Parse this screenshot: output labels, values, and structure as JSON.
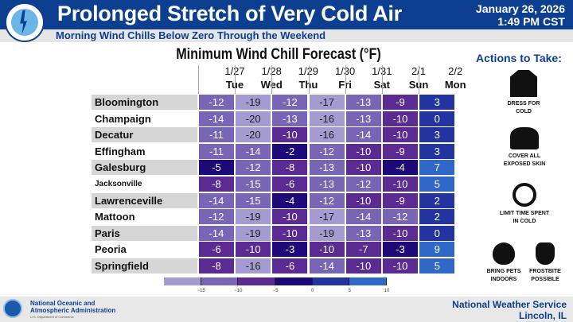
{
  "header": {
    "title": "Prolonged Stretch of Very Cold Air",
    "subtitle": "Morning Wind Chills Below Zero Through the Weekend",
    "date": "January 26, 2026",
    "time": "1:49 PM CST",
    "logo_text": "NATIONAL WEATHER SERVICE"
  },
  "table": {
    "title": "Minimum Wind Chill Forecast (°F)",
    "columns": [
      {
        "date": "1/27",
        "day": "Tue"
      },
      {
        "date": "1/28",
        "day": "Wed"
      },
      {
        "date": "1/29",
        "day": "Thu"
      },
      {
        "date": "1/30",
        "day": "Fri"
      },
      {
        "date": "1/31",
        "day": "Sat"
      },
      {
        "date": "2/1",
        "day": "Sun"
      },
      {
        "date": "2/2",
        "day": "Mon"
      }
    ],
    "rows": [
      {
        "city": "Bloomington",
        "values": [
          -12,
          -19,
          -12,
          -17,
          -13,
          -9,
          3
        ]
      },
      {
        "city": "Champaign",
        "values": [
          -14,
          -20,
          -13,
          -16,
          -13,
          -10,
          0
        ]
      },
      {
        "city": "Decatur",
        "values": [
          -11,
          -20,
          -10,
          -16,
          -14,
          -10,
          3
        ]
      },
      {
        "city": "Effingham",
        "values": [
          -11,
          -14,
          -2,
          -12,
          -10,
          -9,
          3
        ]
      },
      {
        "city": "Galesburg",
        "values": [
          -5,
          -12,
          -8,
          -13,
          -10,
          -4,
          7
        ]
      },
      {
        "city": "Jacksonville",
        "values": [
          -8,
          -15,
          -6,
          -13,
          -12,
          -10,
          5
        ]
      },
      {
        "city": "Lawrenceville",
        "values": [
          -14,
          -15,
          -4,
          -12,
          -10,
          -9,
          2
        ]
      },
      {
        "city": "Mattoon",
        "values": [
          -12,
          -19,
          -10,
          -17,
          -14,
          -12,
          2
        ]
      },
      {
        "city": "Paris",
        "values": [
          -14,
          -19,
          -10,
          -19,
          -13,
          -10,
          0
        ]
      },
      {
        "city": "Peoria",
        "values": [
          -6,
          -10,
          -3,
          -10,
          -7,
          -3,
          9
        ]
      },
      {
        "city": "Springfield",
        "values": [
          -8,
          -16,
          -6,
          -14,
          -10,
          -10,
          5
        ]
      }
    ]
  },
  "legend": {
    "ticks": [
      "−15",
      "−10",
      "−5",
      "0",
      "5",
      "10"
    ],
    "bins": [
      {
        "min": -20,
        "max": -15,
        "color": "#a49bd0"
      },
      {
        "min": -15,
        "max": -10,
        "color": "#7865b6"
      },
      {
        "min": -10,
        "max": -5,
        "color": "#5b2a92"
      },
      {
        "min": -5,
        "max": 0,
        "color": "#1d0a78"
      },
      {
        "min": 0,
        "max": 5,
        "color": "#2334a0"
      },
      {
        "min": 5,
        "max": 10,
        "color": "#2f68c8"
      }
    ]
  },
  "actions": {
    "title": "Actions to Take:",
    "items": [
      {
        "label": "DRESS FOR COLD",
        "icon": "jacket-icon"
      },
      {
        "label": "COVER ALL EXPOSED SKIN",
        "icon": "hat-scarf-icon"
      },
      {
        "label": "LIMIT TIME SPENT IN COLD",
        "icon": "stopwatch-icon"
      },
      {
        "label": "BRING PETS INDOORS",
        "icon": "paw-icon"
      },
      {
        "label": "FROSTBITE POSSIBLE",
        "icon": "hand-snowflake-icon"
      }
    ]
  },
  "footer": {
    "noaa_line1": "National Oceanic and",
    "noaa_line2": "Atmospheric Administration",
    "noaa_dept": "U.S. Department of Commerce",
    "office_line1": "National Weather Service",
    "office_line2": "Lincoln, IL"
  }
}
